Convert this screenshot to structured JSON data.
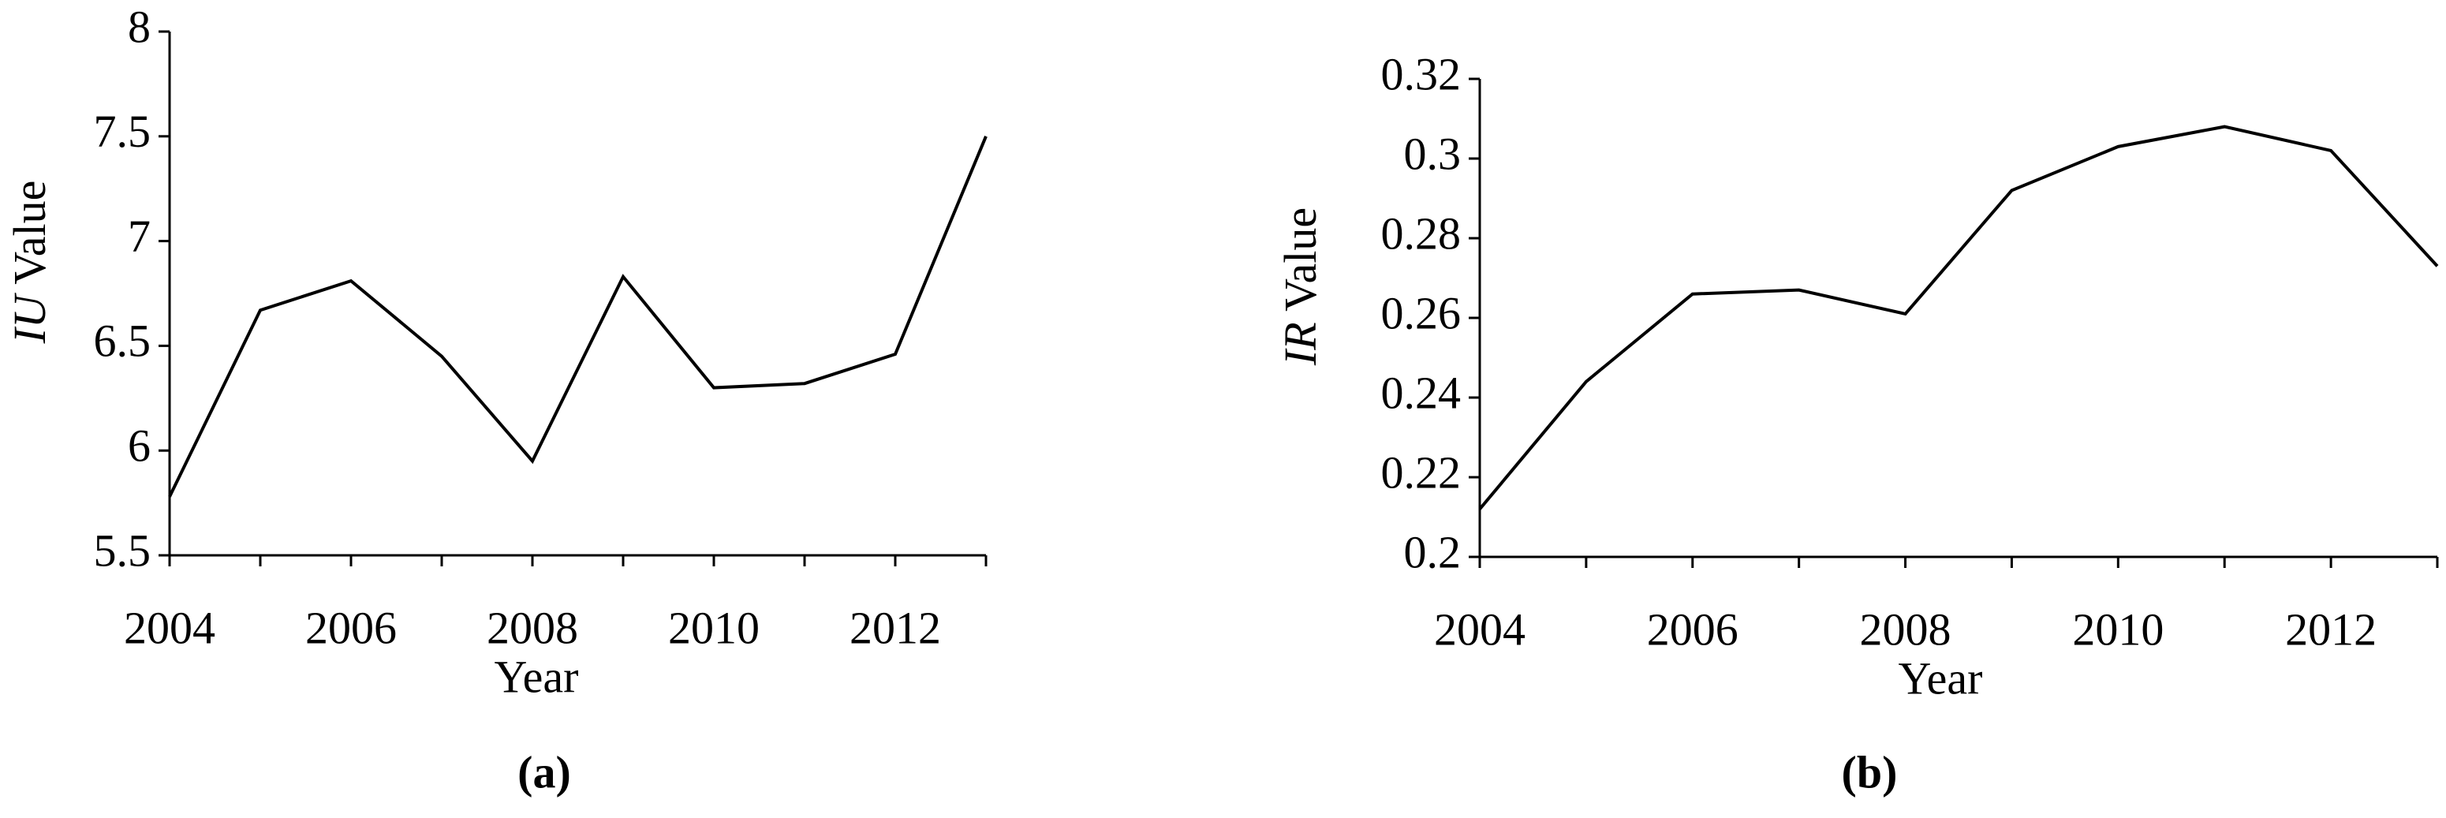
{
  "chart_data": [
    {
      "type": "line",
      "xlabel": "Year",
      "ylabel": {
        "var": "IU",
        "text": "Value"
      },
      "panel": "(a)",
      "x": [
        2004,
        2005,
        2006,
        2007,
        2008,
        2009,
        2010,
        2011,
        2012,
        2013
      ],
      "series": [
        {
          "color": "#000000",
          "values": [
            5.78,
            6.67,
            6.81,
            6.45,
            5.95,
            6.83,
            6.3,
            6.32,
            6.46,
            7.5
          ]
        }
      ],
      "xlim": [
        2004,
        2013
      ],
      "xticks": [
        2004,
        2006,
        2008,
        2010,
        2012
      ],
      "ylim": [
        5.5,
        8
      ],
      "yticks": [
        5.5,
        6,
        6.5,
        7,
        7.5,
        8
      ]
    },
    {
      "type": "line",
      "xlabel": "Year",
      "ylabel": {
        "var": "IR",
        "text": "Value"
      },
      "panel": "(b)",
      "x": [
        2004,
        2005,
        2006,
        2007,
        2008,
        2009,
        2010,
        2011,
        2012,
        2013
      ],
      "series": [
        {
          "color": "#000000",
          "values": [
            0.212,
            0.244,
            0.266,
            0.267,
            0.261,
            0.292,
            0.303,
            0.308,
            0.302,
            0.273
          ]
        }
      ],
      "xlim": [
        2004,
        2013
      ],
      "xticks": [
        2004,
        2006,
        2008,
        2010,
        2012
      ],
      "ylim": [
        0.2,
        0.32
      ],
      "yticks": [
        0.2,
        0.22,
        0.24,
        0.26,
        0.28,
        0.3,
        0.32
      ]
    }
  ]
}
